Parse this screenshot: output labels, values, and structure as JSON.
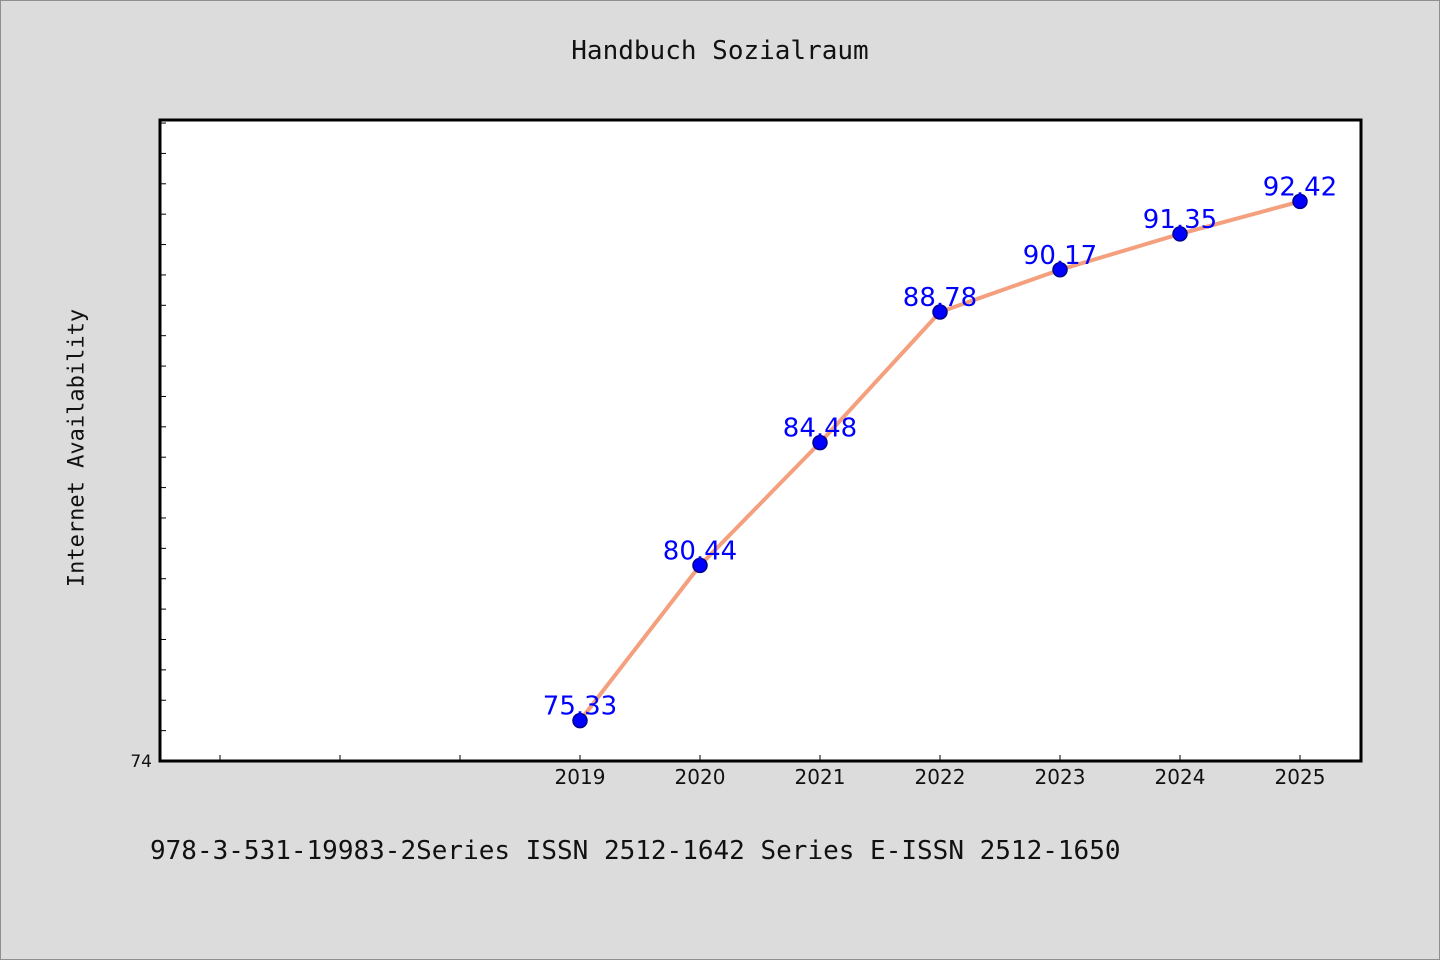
{
  "colors": {
    "background": "#dcdcdc",
    "plot_background": "#ffffff",
    "line": "#f4a07e",
    "marker": "#0000ff",
    "marker_outline": "#00008b",
    "value_label": "#0000ff",
    "axis": "#000000"
  },
  "footer": {
    "text": "978-3-531-19983-2Series ISSN 2512-1642 Series E-ISSN 2512-1650"
  },
  "chart_data": {
    "type": "line",
    "title": "Handbuch Sozialraum",
    "xlabel": "",
    "ylabel": "Internet Availability",
    "categories": [
      "2019",
      "2020",
      "2021",
      "2022",
      "2023",
      "2024",
      "2025"
    ],
    "x_tick_labels": [
      "",
      "",
      "",
      "2019",
      "2020",
      "2021",
      "2022",
      "2023",
      "2024",
      "2025"
    ],
    "y_tick_labels": [
      "74"
    ],
    "ylim": [
      74,
      95.1
    ],
    "grid": false,
    "legend": "none",
    "series": [
      {
        "values": [
          75.33,
          80.44,
          84.48,
          88.78,
          90.17,
          91.35,
          92.42
        ],
        "labels": [
          "75.33",
          "80.44",
          "84.48",
          "88.78",
          "90.17",
          "91.35",
          "92.42"
        ]
      }
    ]
  }
}
